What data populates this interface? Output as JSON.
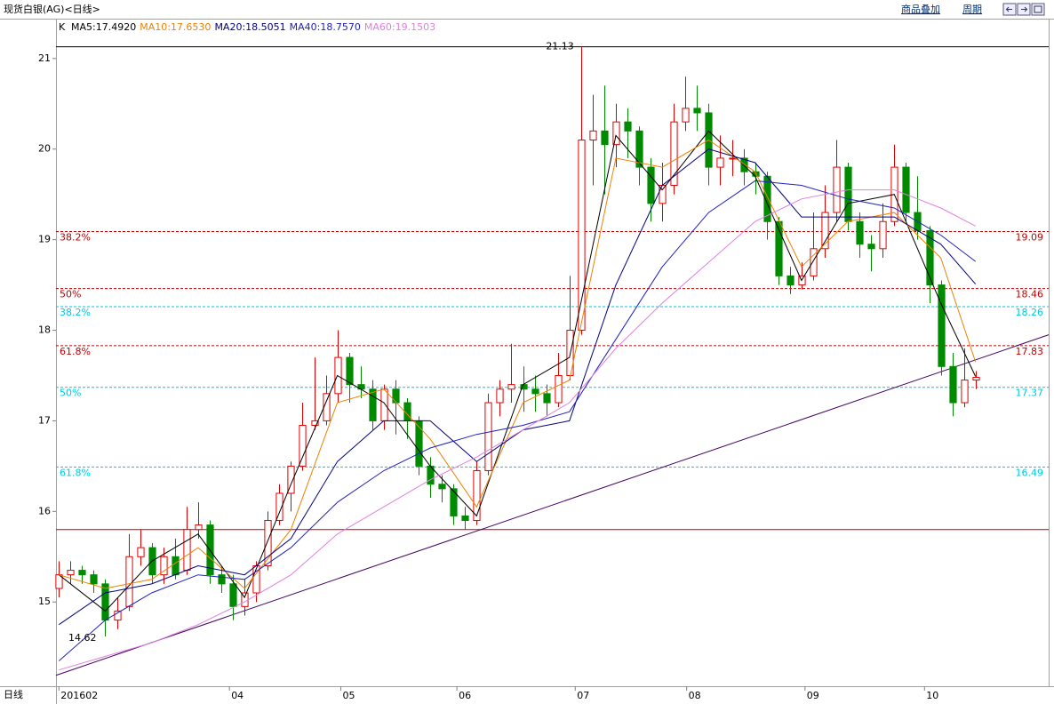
{
  "header": {
    "title": "现货白银(AG)<日线>",
    "links": [
      "商品叠加",
      "周期"
    ]
  },
  "period_label": "日线",
  "legend_k": "K",
  "chart_data": {
    "type": "candlestick",
    "up_color": "#e00000",
    "down_color": "#008a00",
    "xlim": [
      -0.25,
      85.3
    ],
    "ylim": [
      14.07,
      21.43
    ],
    "yticks": [
      15,
      16,
      17,
      18,
      19,
      20,
      21
    ],
    "xticks": [
      {
        "value": 0,
        "label": "201602"
      },
      {
        "value": 14.7,
        "label": "04"
      },
      {
        "value": 24.3,
        "label": "05"
      },
      {
        "value": 34.3,
        "label": "06"
      },
      {
        "value": 44.5,
        "label": "07"
      },
      {
        "value": 54.1,
        "label": "08"
      },
      {
        "value": 64.3,
        "label": "09"
      },
      {
        "value": 74.6,
        "label": "10"
      }
    ],
    "open": [
      15.15,
      15.3,
      15.35,
      15.3,
      15.2,
      14.8,
      14.95,
      15.5,
      15.6,
      15.3,
      15.5,
      15.35,
      15.8,
      15.85,
      15.3,
      15.2,
      14.95,
      15.1,
      15.4,
      15.9,
      16.2,
      16.5,
      16.95,
      17.0,
      17.3,
      17.7,
      17.4,
      17.35,
      17.0,
      17.35,
      17.2,
      17.0,
      16.5,
      16.3,
      16.25,
      15.95,
      15.9,
      16.45,
      17.2,
      17.35,
      17.4,
      17.35,
      17.3,
      17.2,
      17.5,
      18.0,
      20.1,
      20.2,
      20.05,
      20.3,
      20.2,
      19.8,
      19.4,
      19.6,
      20.3,
      20.45,
      20.4,
      19.8,
      19.9,
      19.9,
      19.75,
      19.7,
      19.2,
      18.6,
      18.5,
      18.6,
      18.9,
      19.3,
      19.8,
      19.2,
      18.95,
      18.9,
      19.2,
      19.8,
      19.3,
      19.1,
      18.5,
      17.6,
      17.2,
      17.45
    ],
    "high": [
      15.45,
      15.45,
      15.4,
      15.35,
      15.25,
      15.05,
      15.75,
      15.8,
      15.65,
      15.6,
      15.7,
      16.05,
      16.1,
      15.9,
      15.4,
      15.3,
      15.25,
      15.45,
      16.0,
      16.3,
      16.55,
      17.2,
      17.7,
      17.5,
      18.0,
      17.75,
      17.6,
      17.45,
      17.4,
      17.45,
      17.25,
      17.05,
      16.6,
      16.4,
      16.3,
      16.05,
      16.55,
      17.3,
      17.45,
      17.85,
      17.6,
      17.5,
      17.4,
      17.75,
      18.6,
      21.13,
      20.6,
      20.7,
      20.5,
      20.45,
      20.25,
      19.9,
      19.85,
      20.5,
      20.8,
      20.7,
      20.5,
      20.15,
      20.1,
      20.0,
      19.85,
      19.75,
      19.25,
      18.7,
      18.75,
      19.3,
      19.6,
      20.1,
      19.85,
      19.3,
      19.05,
      19.4,
      20.05,
      19.85,
      19.7,
      19.15,
      18.55,
      17.75,
      17.8,
      17.55
    ],
    "low": [
      15.05,
      15.2,
      15.2,
      15.1,
      14.62,
      14.7,
      14.9,
      15.4,
      15.2,
      15.2,
      15.25,
      15.3,
      15.7,
      15.2,
      15.1,
      14.8,
      14.85,
      15.0,
      15.35,
      15.85,
      16.0,
      16.45,
      16.9,
      16.95,
      17.2,
      17.2,
      17.25,
      16.9,
      16.9,
      16.85,
      16.8,
      16.4,
      16.15,
      16.1,
      15.85,
      15.8,
      15.85,
      16.4,
      17.05,
      17.2,
      17.1,
      17.1,
      17.05,
      17.15,
      17.45,
      17.95,
      19.6,
      19.5,
      19.8,
      19.9,
      19.6,
      19.2,
      19.2,
      19.5,
      20.2,
      20.2,
      19.6,
      19.6,
      19.7,
      19.6,
      19.5,
      19.0,
      18.5,
      18.4,
      18.45,
      18.55,
      18.8,
      19.2,
      19.1,
      18.8,
      18.65,
      18.8,
      19.15,
      19.2,
      19.0,
      18.3,
      17.5,
      17.05,
      17.15,
      17.35
    ],
    "close": [
      15.3,
      15.35,
      15.3,
      15.2,
      14.8,
      14.9,
      15.5,
      15.6,
      15.3,
      15.5,
      15.3,
      15.8,
      15.85,
      15.3,
      15.2,
      14.95,
      15.1,
      15.4,
      15.9,
      16.2,
      16.5,
      16.95,
      17.0,
      17.3,
      17.7,
      17.4,
      17.35,
      17.0,
      17.35,
      17.2,
      17.0,
      16.5,
      16.3,
      16.25,
      15.95,
      15.9,
      16.45,
      17.2,
      17.35,
      17.4,
      17.35,
      17.3,
      17.2,
      17.5,
      18.0,
      20.1,
      20.2,
      20.05,
      20.3,
      20.2,
      19.8,
      19.4,
      19.6,
      20.3,
      20.45,
      20.4,
      19.8,
      19.9,
      19.9,
      19.75,
      19.7,
      19.2,
      18.6,
      18.5,
      18.6,
      18.9,
      19.3,
      19.8,
      19.2,
      18.95,
      18.9,
      19.2,
      19.8,
      19.3,
      19.1,
      18.5,
      17.6,
      17.2,
      17.45,
      17.48
    ],
    "ma_x": [
      0,
      4,
      8,
      12,
      16,
      20,
      24,
      28,
      32,
      36,
      40,
      44,
      48,
      52,
      56,
      60,
      64,
      68,
      72,
      76,
      79
    ],
    "series": [
      {
        "name": "MA5:17.4920",
        "color": "#000000",
        "values": [
          15.3,
          14.9,
          15.45,
          15.75,
          15.05,
          16.3,
          17.5,
          17.2,
          16.5,
          15.95,
          17.4,
          17.7,
          20.15,
          19.55,
          20.2,
          19.7,
          18.55,
          19.4,
          19.5,
          18.3,
          17.49
        ]
      },
      {
        "name": "MA10:17.6530",
        "color": "#f08000",
        "values": [
          15.3,
          15.15,
          15.25,
          15.6,
          15.15,
          15.8,
          17.2,
          17.35,
          16.8,
          16.05,
          17.2,
          17.45,
          19.9,
          19.8,
          20.1,
          19.75,
          18.7,
          19.2,
          19.3,
          18.8,
          17.65
        ]
      },
      {
        "name": "MA20:18.5051",
        "color": "#000080",
        "values": [
          14.75,
          15.1,
          15.2,
          15.4,
          15.3,
          15.7,
          16.55,
          17.0,
          17.0,
          16.55,
          16.9,
          17.0,
          18.5,
          19.6,
          20.0,
          19.85,
          19.25,
          19.25,
          19.25,
          18.95,
          18.51
        ]
      },
      {
        "name": "MA40:18.7570",
        "color": "#2020c0",
        "values": [
          14.35,
          14.8,
          15.1,
          15.3,
          15.25,
          15.6,
          16.1,
          16.45,
          16.7,
          16.85,
          16.95,
          17.1,
          17.9,
          18.7,
          19.3,
          19.65,
          19.6,
          19.45,
          19.35,
          19.05,
          18.76
        ]
      },
      {
        "name": "MA60:19.1503",
        "color": "#e080e0",
        "values": [
          14.25,
          14.4,
          14.55,
          14.75,
          15.0,
          15.3,
          15.75,
          16.05,
          16.35,
          16.6,
          16.9,
          17.2,
          17.8,
          18.3,
          18.75,
          19.2,
          19.45,
          19.55,
          19.55,
          19.35,
          19.15
        ]
      }
    ],
    "levels": [
      {
        "value": 19.09,
        "name": "38.2%",
        "color": "#c00000"
      },
      {
        "value": 18.46,
        "name": "50%",
        "color": "#c00000"
      },
      {
        "value": 17.83,
        "name": "61.8%",
        "color": "#c00000"
      },
      {
        "value": 18.26,
        "name": "38.2%",
        "color": "#00c8e0"
      },
      {
        "value": 17.37,
        "name": "50%",
        "color": "#00c8e0"
      },
      {
        "value": 16.49,
        "name": "61.8%",
        "color": "#00c8e0"
      }
    ],
    "hline": {
      "value": 15.8,
      "color": "#c00000"
    },
    "trendline": {
      "x": [
        -0.25,
        85.3
      ],
      "y": [
        14.19,
        17.95
      ],
      "color": "#400060"
    }
  }
}
